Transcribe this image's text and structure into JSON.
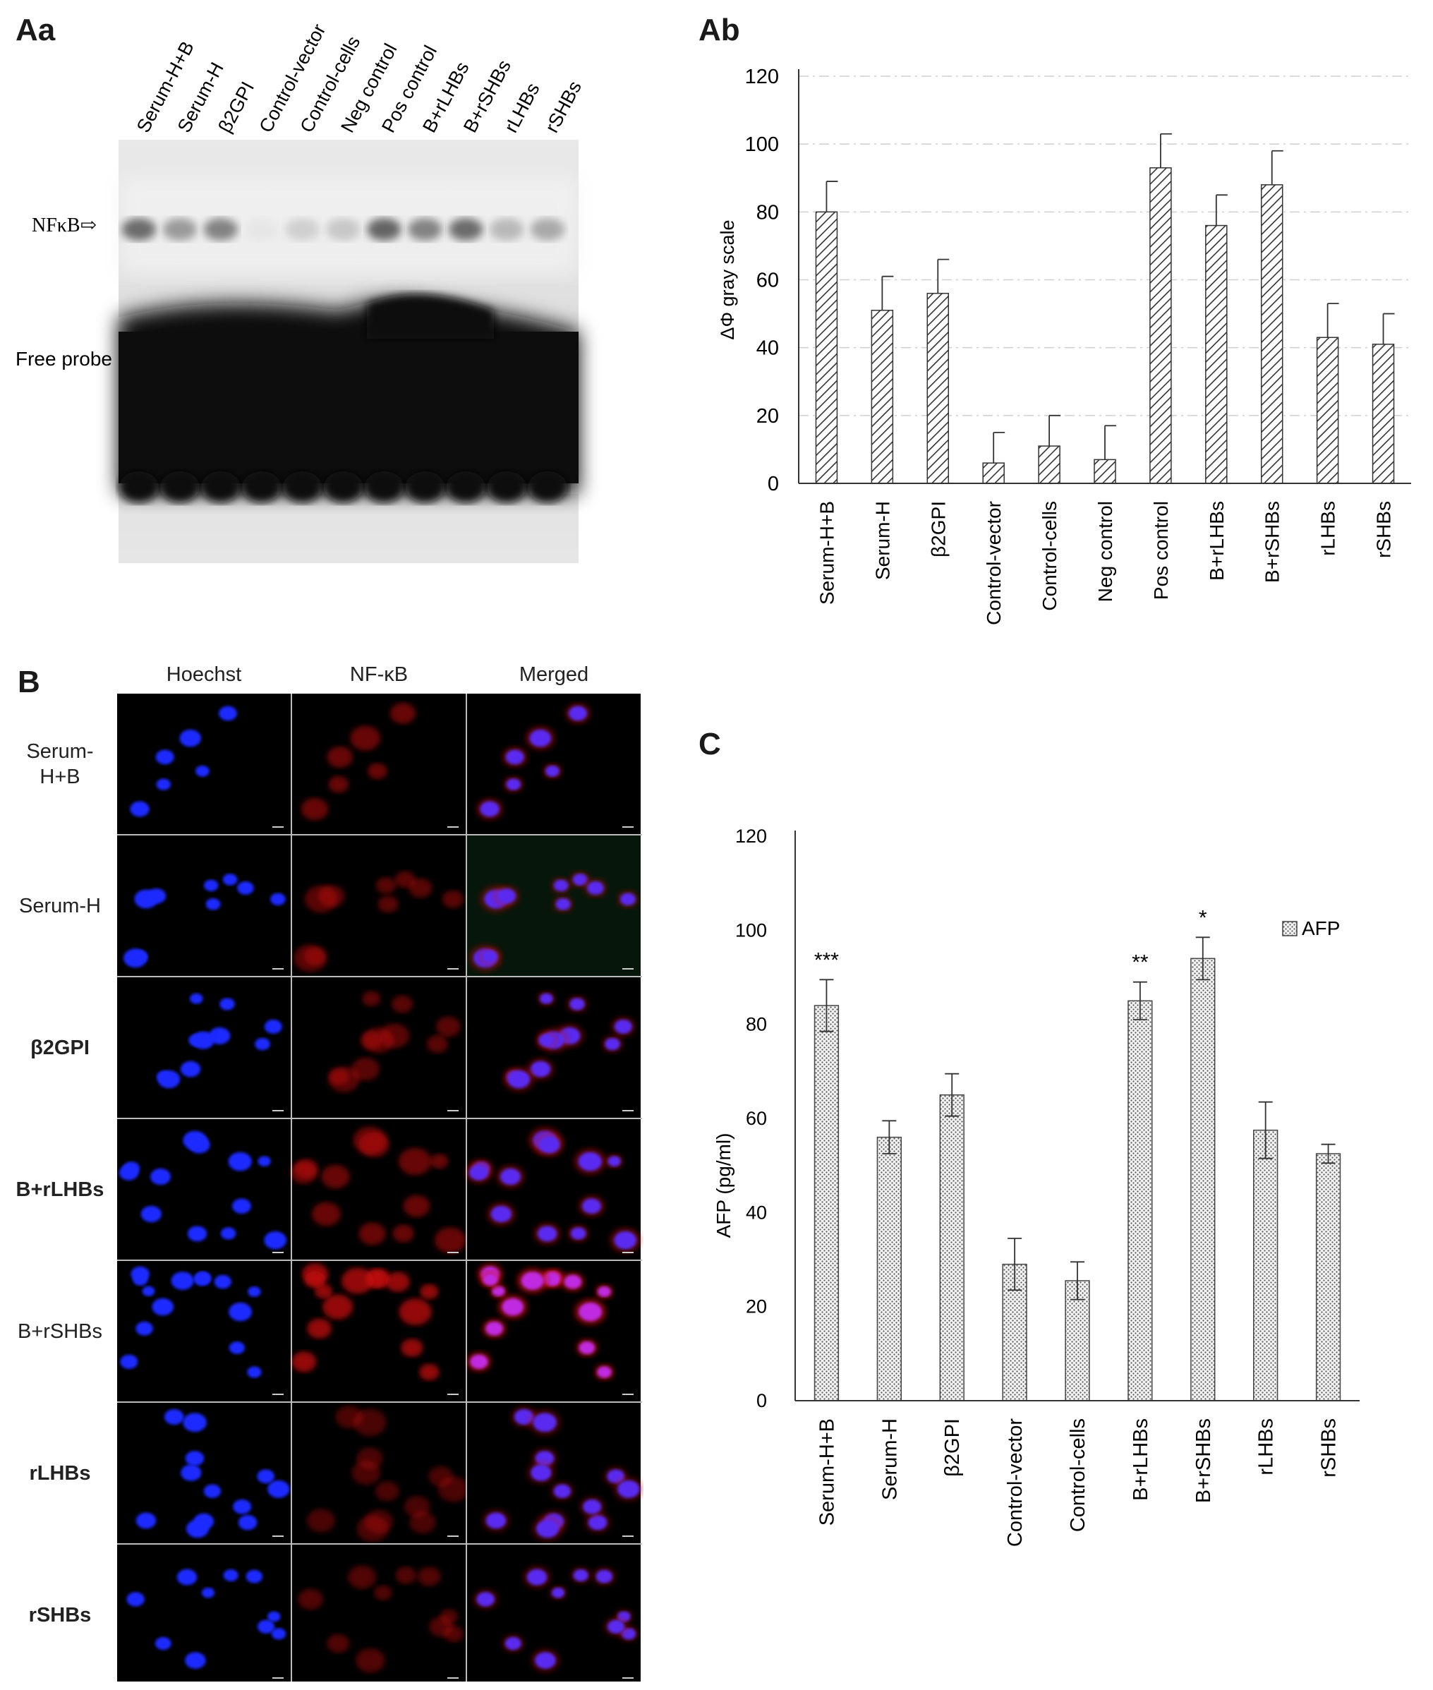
{
  "panels": {
    "aa": {
      "letter": "Aa"
    },
    "ab": {
      "letter": "Ab"
    },
    "b": {
      "letter": "B"
    },
    "c": {
      "letter": "C"
    }
  },
  "gel": {
    "lane_labels": [
      "Serum-H+B",
      "Serum-H",
      "β2GPI",
      "Control-vector",
      "Control-cells",
      "Neg control",
      "Pos control",
      "B+rLHBs",
      "B+rSHBs",
      "rLHBs",
      "rSHBs"
    ],
    "nfkb_label": "NFκB⇨",
    "free_probe_label": "Free probe"
  },
  "microscopy": {
    "columns": [
      "Hoechst",
      "NF-κB",
      "Merged"
    ],
    "rows": [
      {
        "label_line1": "Serum-",
        "label_line2": "H+B",
        "bold": false
      },
      {
        "label_line1": "Serum-H",
        "label_line2": "",
        "bold": false
      },
      {
        "label_line1": "β2GPI",
        "label_line2": "",
        "bold": true
      },
      {
        "label_line1": "B+rLHBs",
        "label_line2": "",
        "bold": true
      },
      {
        "label_line1": "B+rSHBs",
        "label_line2": "",
        "bold": false
      },
      {
        "label_line1": "rLHBs",
        "label_line2": "",
        "bold": true
      },
      {
        "label_line1": "rSHBs",
        "label_line2": "",
        "bold": true
      }
    ]
  },
  "chart_data": [
    {
      "id": "Ab",
      "type": "bar",
      "categories": [
        "Serum-H+B",
        "Serum-H",
        "β2GPI",
        "Control-vector",
        "Control-cells",
        "Neg control",
        "Pos control",
        "B+rLHBs",
        "B+rSHBs",
        "rLHBs",
        "rSHBs"
      ],
      "values": [
        80,
        51,
        56,
        6,
        11,
        7,
        93,
        76,
        88,
        43,
        41
      ],
      "errors": [
        9,
        10,
        10,
        9,
        9,
        10,
        10,
        9,
        10,
        10,
        9
      ],
      "ylabel": "ΔΦ gray scale",
      "xlabel": "",
      "ylim": [
        0,
        120
      ],
      "yticks": [
        0,
        20,
        40,
        60,
        80,
        100,
        120
      ],
      "grid": true,
      "pattern": "diagonal-hatch"
    },
    {
      "id": "C",
      "type": "bar",
      "categories": [
        "Serum-H+B",
        "Serum-H",
        "β2GPI",
        "Control-vector",
        "Control-cells",
        "B+rLHBs",
        "B+rSHBs",
        "rLHBs",
        "rSHBs"
      ],
      "series": [
        {
          "name": "AFP",
          "values": [
            84,
            56,
            65,
            29,
            25.5,
            85,
            94,
            57.5,
            52.5
          ]
        }
      ],
      "errors": [
        5.5,
        3.5,
        4.5,
        5.5,
        4,
        4,
        4.5,
        6,
        2
      ],
      "significance": [
        "***",
        "",
        "",
        "",
        "",
        "**",
        "*",
        "",
        ""
      ],
      "ylabel": "AFP (pg/ml)",
      "xlabel": "",
      "ylim": [
        0,
        120
      ],
      "yticks": [
        0,
        20,
        40,
        60,
        80,
        100,
        120
      ],
      "grid": false,
      "legend": "top-right",
      "pattern": "dots"
    }
  ]
}
